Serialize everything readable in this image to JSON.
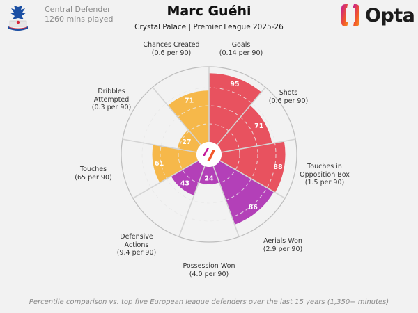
{
  "header": {
    "player_name": "Marc Guéhi",
    "subtitle": "Crystal Palace | Premier League 2025-26",
    "position": "Central Defender",
    "minutes": "1260 mins played",
    "club_crest": "crystal-palace-crest",
    "brand": "Opta"
  },
  "footer": {
    "note": "Percentile comparison vs. top five European league defenders over the last 15 years (1,350+ minutes)"
  },
  "colors": {
    "attacking": "#e8525f",
    "possession": "#f6b84a",
    "defending": "#b340b8",
    "background": "#f2f2f2"
  },
  "chart_data": {
    "type": "polar-area",
    "title": "Marc Guéhi",
    "subtitle": "Crystal Palace | Premier League 2025-26",
    "scale": [
      0,
      100
    ],
    "grid": {
      "rings": [
        25,
        50,
        75,
        100
      ],
      "style": "dashed"
    },
    "categories": [
      {
        "name": "Goals",
        "detail": "(0.14 per 90)",
        "value": 95,
        "group": "attacking"
      },
      {
        "name": "Shots",
        "detail": "(0.6 per 90)",
        "value": 71,
        "group": "attacking"
      },
      {
        "name": "Touches in Opposition Box",
        "detail": "(1.5 per 90)",
        "value": 88,
        "group": "attacking"
      },
      {
        "name": "Aerials Won",
        "detail": "(2.9 per 90)",
        "value": 86,
        "group": "defending"
      },
      {
        "name": "Possession Won",
        "detail": "(4.0 per 90)",
        "value": 24,
        "group": "defending"
      },
      {
        "name": "Defensive Actions",
        "detail": "(9.4 per 90)",
        "value": 43,
        "group": "defending"
      },
      {
        "name": "Touches",
        "detail": "(65 per 90)",
        "value": 61,
        "group": "possession"
      },
      {
        "name": "Dribbles Attempted",
        "detail": "(0.3 per 90)",
        "value": 27,
        "group": "possession"
      },
      {
        "name": "Chances Created",
        "detail": "(0.6 per 90)",
        "value": 71,
        "group": "possession"
      }
    ],
    "labels": [
      {
        "l1": "Goals",
        "l2": "(0.14 per 90)"
      },
      {
        "l1": "Shots",
        "l2": "(0.6 per 90)"
      },
      {
        "l1": "Touches in",
        "l2": "Opposition Box",
        "l3": "(1.5 per 90)"
      },
      {
        "l1": "Aerials Won",
        "l2": "(2.9 per 90)"
      },
      {
        "l1": "Possession Won",
        "l2": "(4.0 per 90)"
      },
      {
        "l1": "Defensive",
        "l2": "Actions",
        "l3": "(9.4 per 90)"
      },
      {
        "l1": "Touches",
        "l2": "(65 per 90)"
      },
      {
        "l1": "Dribbles",
        "l2": "Attempted",
        "l3": "(0.3 per 90)"
      },
      {
        "l1": "Chances Created",
        "l2": "(0.6 per 90)"
      }
    ]
  }
}
